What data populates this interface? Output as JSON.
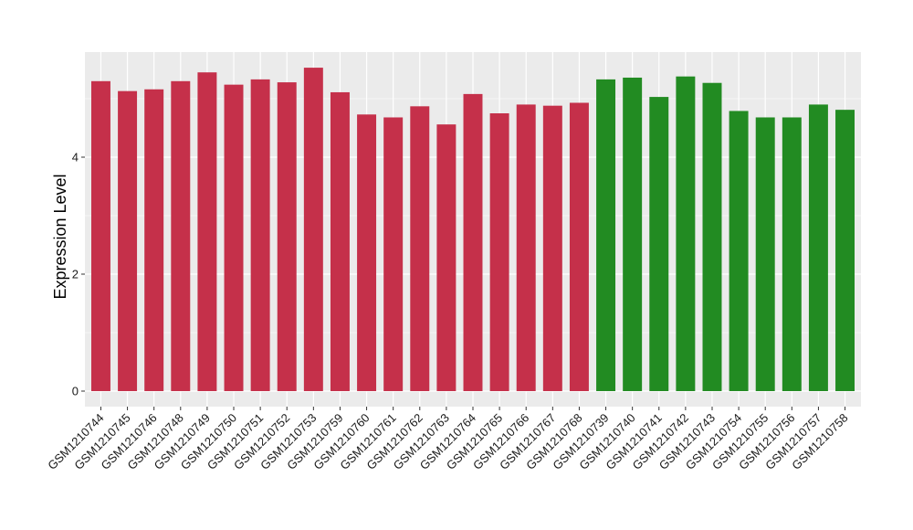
{
  "chart_data": {
    "type": "bar",
    "title": "",
    "xlabel": "",
    "ylabel": "Expression Level",
    "ylim": [
      0,
      5.7
    ],
    "yticks": [
      0,
      2,
      4
    ],
    "grid": true,
    "legend": "none",
    "categories": [
      "GSM1210744",
      "GSM1210745",
      "GSM1210746",
      "GSM1210748",
      "GSM1210749",
      "GSM1210750",
      "GSM1210751",
      "GSM1210752",
      "GSM1210753",
      "GSM1210759",
      "GSM1210760",
      "GSM1210761",
      "GSM1210762",
      "GSM1210763",
      "GSM1210764",
      "GSM1210765",
      "GSM1210766",
      "GSM1210767",
      "GSM1210768",
      "GSM1210739",
      "GSM1210740",
      "GSM1210741",
      "GSM1210742",
      "GSM1210743",
      "GSM1210754",
      "GSM1210755",
      "GSM1210756",
      "GSM1210757",
      "GSM1210758"
    ],
    "values": [
      5.3,
      5.13,
      5.16,
      5.3,
      5.45,
      5.24,
      5.33,
      5.28,
      5.53,
      5.11,
      4.73,
      4.68,
      4.87,
      4.56,
      5.08,
      4.75,
      4.9,
      4.88,
      4.93,
      5.33,
      5.36,
      5.03,
      5.38,
      5.27,
      4.79,
      4.68,
      4.68,
      4.9,
      4.81
    ],
    "bar_colors": [
      "#c5304a",
      "#c5304a",
      "#c5304a",
      "#c5304a",
      "#c5304a",
      "#c5304a",
      "#c5304a",
      "#c5304a",
      "#c5304a",
      "#c5304a",
      "#c5304a",
      "#c5304a",
      "#c5304a",
      "#c5304a",
      "#c5304a",
      "#c5304a",
      "#c5304a",
      "#c5304a",
      "#c5304a",
      "#228b22",
      "#228b22",
      "#228b22",
      "#228b22",
      "#228b22",
      "#228b22",
      "#228b22",
      "#228b22",
      "#228b22",
      "#228b22"
    ],
    "panel_background": "#ebebeb",
    "grid_color": "#ffffff"
  }
}
